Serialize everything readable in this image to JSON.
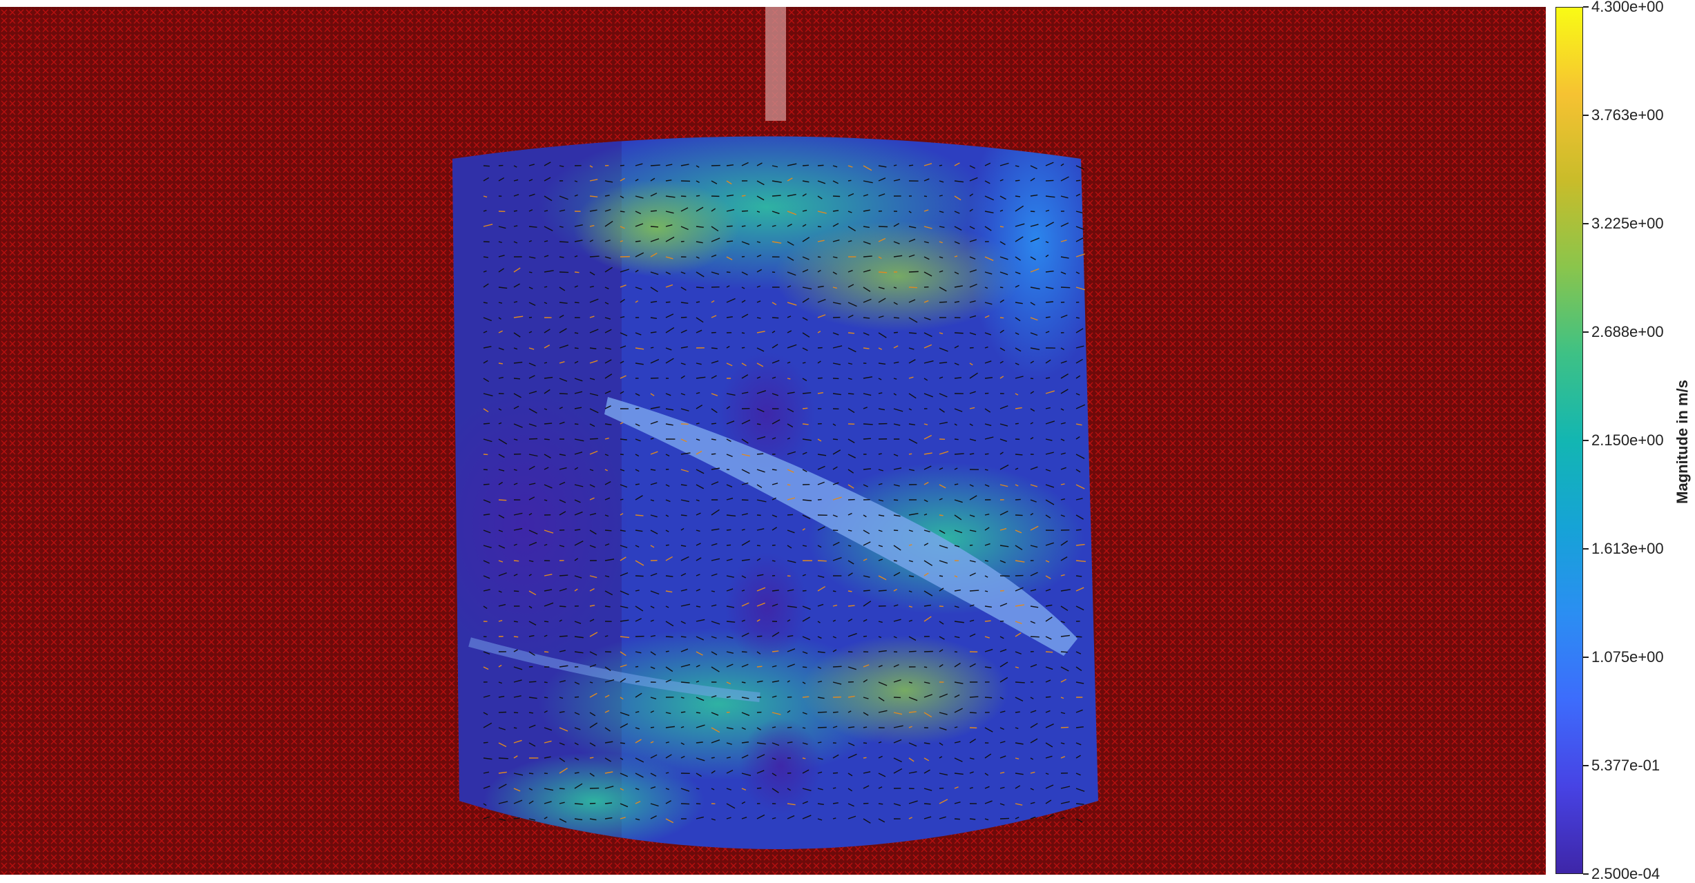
{
  "chart_data": {
    "type": "heatmap",
    "title": "",
    "xlabel": "",
    "ylabel": "",
    "description_visible": "velocity magnitude field with quiver vectors overlaid on a cylindrical vessel; masked region shown in dark red with red crosses",
    "colormap": "parula",
    "colorbar": {
      "label": "Magnitude in m/s",
      "range": [
        0.00025,
        4.3
      ],
      "ticks": [
        "2.500e-04",
        "5.377e-01",
        "1.075e+00",
        "1.613e+00",
        "2.150e+00",
        "2.688e+00",
        "3.225e+00",
        "3.763e+00",
        "4.300e+00"
      ],
      "tick_values": [
        0.00025,
        0.5377,
        1.075,
        1.613,
        2.15,
        2.688,
        3.225,
        3.763,
        4.3
      ]
    },
    "colors": {
      "mask": "#6e0a0a",
      "mask_marker": "#d01010",
      "vector": "#111111"
    }
  }
}
